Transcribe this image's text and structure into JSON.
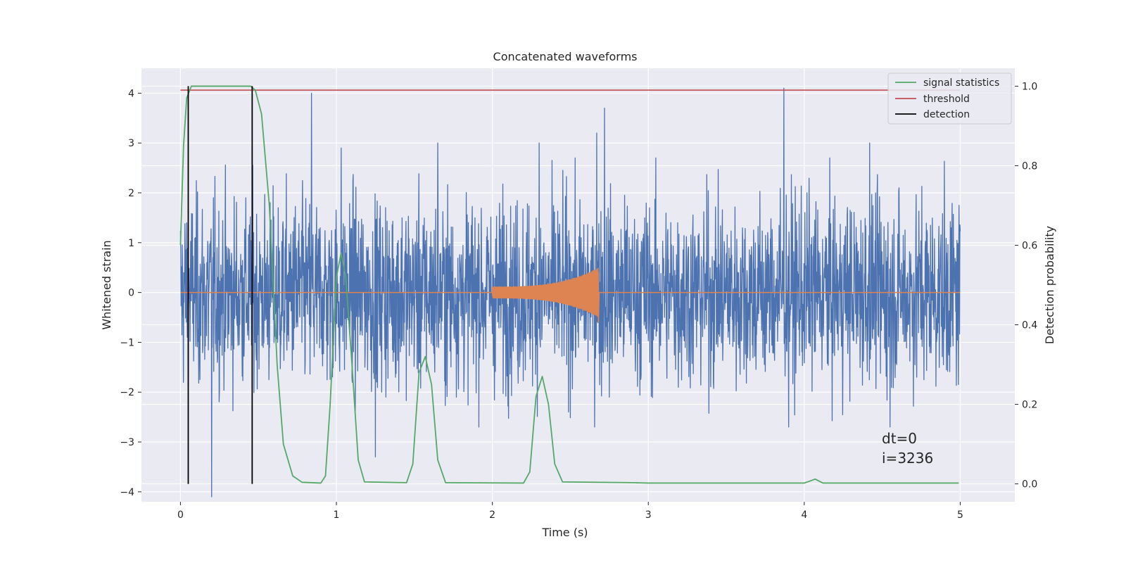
{
  "chart_data": {
    "type": "line",
    "title": "Concatenated waveforms",
    "xlabel": "Time (s)",
    "ylabel_left": "Whitened strain",
    "ylabel_right": "Detection probability",
    "xlim": [
      -0.25,
      5.35
    ],
    "ylim_left": [
      -4.2,
      4.5
    ],
    "ylim_right": [
      -0.045,
      1.045
    ],
    "x_ticks": [
      0,
      1,
      2,
      3,
      4,
      5
    ],
    "x_tick_labels": [
      "0",
      "1",
      "2",
      "3",
      "4",
      "5"
    ],
    "y_left_ticks": [
      4,
      3,
      2,
      1,
      0,
      -1,
      -2,
      -3,
      -4
    ],
    "y_left_tick_labels": [
      "4",
      "3",
      "2",
      "1",
      "0",
      "−1",
      "−2",
      "−3",
      "−4"
    ],
    "y_right_ticks": [
      1.0,
      0.8,
      0.6,
      0.4,
      0.2,
      0.0
    ],
    "y_right_tick_labels": [
      "1.0",
      "0.8",
      "0.6",
      "0.4",
      "0.2",
      "0.0"
    ],
    "grid": true,
    "legend_position": "upper right",
    "legend": [
      {
        "label": "signal statistics",
        "color": "#55a868"
      },
      {
        "label": "threshold",
        "color": "#c44e52"
      },
      {
        "label": "detection",
        "color": "#000000"
      }
    ],
    "series": [
      {
        "role": "strain",
        "axis": "left",
        "color": "#4c72b0",
        "x_range": [
          0,
          5
        ],
        "typical_amplitude": 1.3,
        "peaks": [
          {
            "x": 0.2,
            "y": -4.1
          },
          {
            "x": 0.84,
            "y": 4.0
          },
          {
            "x": 1.03,
            "y": 2.9
          },
          {
            "x": 1.25,
            "y": -3.3
          },
          {
            "x": 1.65,
            "y": 3.0
          },
          {
            "x": 2.3,
            "y": 3.0
          },
          {
            "x": 2.67,
            "y": 3.2
          },
          {
            "x": 2.72,
            "y": 3.7
          },
          {
            "x": 3.87,
            "y": 4.1
          },
          {
            "x": 3.9,
            "y": -2.7
          },
          {
            "x": 4.42,
            "y": 3.0
          },
          {
            "x": 4.55,
            "y": -2.7
          }
        ]
      },
      {
        "role": "injected signal",
        "axis": "left",
        "color": "#dd8452",
        "chirp_start": 2.0,
        "chirp_end": 2.68,
        "start_amplitude": 0.12,
        "end_amplitude": 0.5
      },
      {
        "name": "signal statistics",
        "axis": "right",
        "color": "#55a868",
        "points": [
          [
            0.0,
            0.6
          ],
          [
            0.02,
            0.85
          ],
          [
            0.04,
            0.97
          ],
          [
            0.07,
            1.0
          ],
          [
            0.45,
            1.0
          ],
          [
            0.48,
            0.99
          ],
          [
            0.52,
            0.93
          ],
          [
            0.57,
            0.7
          ],
          [
            0.62,
            0.3
          ],
          [
            0.66,
            0.1
          ],
          [
            0.72,
            0.02
          ],
          [
            0.78,
            0.004
          ],
          [
            0.9,
            0.002
          ],
          [
            0.93,
            0.02
          ],
          [
            0.96,
            0.2
          ],
          [
            1.0,
            0.52
          ],
          [
            1.03,
            0.58
          ],
          [
            1.06,
            0.52
          ],
          [
            1.1,
            0.3
          ],
          [
            1.14,
            0.06
          ],
          [
            1.18,
            0.005
          ],
          [
            1.45,
            0.003
          ],
          [
            1.49,
            0.05
          ],
          [
            1.53,
            0.28
          ],
          [
            1.57,
            0.32
          ],
          [
            1.61,
            0.25
          ],
          [
            1.65,
            0.06
          ],
          [
            1.7,
            0.003
          ],
          [
            2.2,
            0.002
          ],
          [
            2.24,
            0.03
          ],
          [
            2.28,
            0.22
          ],
          [
            2.32,
            0.27
          ],
          [
            2.36,
            0.2
          ],
          [
            2.4,
            0.05
          ],
          [
            2.45,
            0.005
          ],
          [
            2.9,
            0.003
          ],
          [
            3.0,
            0.002
          ],
          [
            4.0,
            0.002
          ],
          [
            4.07,
            0.012
          ],
          [
            4.12,
            0.002
          ],
          [
            4.99,
            0.002
          ]
        ]
      },
      {
        "name": "threshold",
        "axis": "right",
        "color": "#c44e52",
        "x": [
          0,
          5
        ],
        "y": [
          0.99,
          0.99
        ]
      },
      {
        "name": "detection",
        "axis": "right",
        "color": "#000000",
        "x": [
          0.05,
          0.46
        ],
        "y_range": [
          0.0,
          1.0
        ]
      }
    ],
    "annotations": [
      "dt=0",
      "i=3236"
    ]
  }
}
